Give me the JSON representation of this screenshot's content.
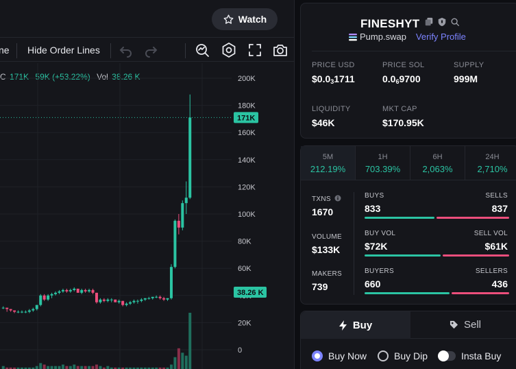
{
  "chart_header": {
    "watch_label": "Watch",
    "toolbar_partial_label": "ne",
    "hide_order_lines_label": "Hide Order Lines",
    "ohlc_prefix": "C",
    "ohlc_close": "171K",
    "ohlc_change": "59K (+53.22%)",
    "vol_label": "Vol",
    "vol_value": "38.26 K"
  },
  "chart_data": {
    "type": "candlestick",
    "price_axis_ticks": [
      "200K",
      "180K",
      "160K",
      "140K",
      "120K",
      "100K",
      "80K",
      "60K",
      "40K",
      "20K",
      "0"
    ],
    "ylim": [
      0,
      200000
    ],
    "last_price_label": "171K",
    "last_price": 171000,
    "volume_label": "38.26 K",
    "candles": [
      [
        31,
        32,
        30,
        31
      ],
      [
        31,
        30,
        28,
        30
      ],
      [
        30,
        30,
        28,
        29
      ],
      [
        29,
        29,
        27,
        28
      ],
      [
        28,
        29,
        27,
        28
      ],
      [
        28,
        29,
        27,
        28
      ],
      [
        28,
        29,
        27,
        28
      ],
      [
        28,
        30,
        27,
        29
      ],
      [
        29,
        31,
        28,
        30
      ],
      [
        30,
        33,
        29,
        33
      ],
      [
        33,
        41,
        32,
        40
      ],
      [
        40,
        41,
        36,
        37
      ],
      [
        37,
        41,
        36,
        40
      ],
      [
        40,
        42,
        38,
        41
      ],
      [
        41,
        43,
        40,
        42
      ],
      [
        42,
        44,
        41,
        43
      ],
      [
        43,
        45,
        42,
        44
      ],
      [
        44,
        45,
        42,
        43
      ],
      [
        43,
        45,
        42,
        44
      ],
      [
        44,
        46,
        43,
        45
      ],
      [
        45,
        45,
        42,
        42
      ],
      [
        42,
        45,
        41,
        44
      ],
      [
        44,
        45,
        42,
        43
      ],
      [
        43,
        45,
        42,
        44
      ],
      [
        44,
        45,
        41,
        42
      ],
      [
        42,
        42,
        34,
        35
      ],
      [
        35,
        38,
        34,
        37
      ],
      [
        37,
        38,
        35,
        36
      ],
      [
        36,
        38,
        35,
        37
      ],
      [
        37,
        38,
        35,
        37
      ],
      [
        37,
        37,
        35,
        35
      ],
      [
        35,
        37,
        34,
        36
      ],
      [
        36,
        36,
        32,
        33
      ],
      [
        33,
        35,
        32,
        34
      ],
      [
        34,
        36,
        33,
        35
      ],
      [
        35,
        37,
        34,
        36
      ],
      [
        36,
        37,
        34,
        36
      ],
      [
        36,
        38,
        35,
        37
      ],
      [
        37,
        38,
        36,
        38
      ],
      [
        38,
        39,
        37,
        38
      ],
      [
        38,
        39,
        37,
        39
      ],
      [
        39,
        40,
        38,
        39
      ],
      [
        39,
        40,
        37,
        38
      ],
      [
        38,
        39,
        36,
        37
      ],
      [
        37,
        38,
        36,
        38
      ],
      [
        38,
        63,
        37,
        61
      ],
      [
        61,
        96,
        60,
        95
      ],
      [
        95,
        100,
        85,
        90
      ],
      [
        90,
        110,
        88,
        108
      ],
      [
        108,
        124,
        100,
        112
      ],
      [
        112,
        188,
        111,
        171
      ]
    ],
    "volumes": [
      2,
      1,
      1,
      1,
      1,
      1,
      1,
      1,
      1,
      2,
      4,
      3,
      2,
      2,
      2,
      2,
      3,
      2,
      2,
      3,
      2,
      2,
      2,
      2,
      2,
      3,
      2,
      1,
      2,
      1,
      1,
      1,
      1,
      1,
      1,
      1,
      1,
      1,
      1,
      1,
      1,
      1,
      1,
      1,
      1,
      3,
      8,
      14,
      11,
      9,
      38
    ]
  },
  "token": {
    "name": "FINESHYT",
    "dex": "Pump.swap",
    "verify_label": "Verify Profile",
    "stats": [
      {
        "label": "PRICE USD",
        "value_pre": "$0.0",
        "value_sub": "3",
        "value_post": "1711"
      },
      {
        "label": "PRICE SOL",
        "value_pre": "0.0",
        "value_sub": "6",
        "value_post": "9700"
      },
      {
        "label": "SUPPLY",
        "value_pre": "999M",
        "value_sub": "",
        "value_post": ""
      },
      {
        "label": "LIQUIDITY",
        "value_pre": "$46K",
        "value_sub": "",
        "value_post": ""
      },
      {
        "label": "MKT CAP",
        "value_pre": "$170.95K",
        "value_sub": "",
        "value_post": ""
      }
    ]
  },
  "timeframes": [
    {
      "label": "5M",
      "value": "212.19%"
    },
    {
      "label": "1H",
      "value": "703.39%"
    },
    {
      "label": "6H",
      "value": "2,063%"
    },
    {
      "label": "24H",
      "value": "2,710%"
    }
  ],
  "txns": {
    "txns_label": "TXNS",
    "txns_value": "1670",
    "volume_label": "VOLUME",
    "volume_value": "$133K",
    "makers_label": "MAKERS",
    "makers_value": "739",
    "buys_label": "BUYS",
    "buys_value": "833",
    "sells_label": "SELLS",
    "sells_value": "837",
    "buy_vol_label": "BUY VOL",
    "buy_vol_value": "$72K",
    "sell_vol_label": "SELL VOL",
    "sell_vol_value": "$61K",
    "buyers_label": "BUYERS",
    "buyers_value": "660",
    "sellers_label": "SELLERS",
    "sellers_value": "436",
    "ratios": {
      "buys": 0.499,
      "buy_vol": 0.54,
      "buyers": 0.602
    }
  },
  "trade": {
    "buy_tab": "Buy",
    "sell_tab": "Sell",
    "options": [
      "Buy Now",
      "Buy Dip",
      "Insta Buy"
    ]
  },
  "colors": {
    "up": "#2bc4a3",
    "down": "#ec4e7c",
    "accent": "#7c83ff"
  }
}
